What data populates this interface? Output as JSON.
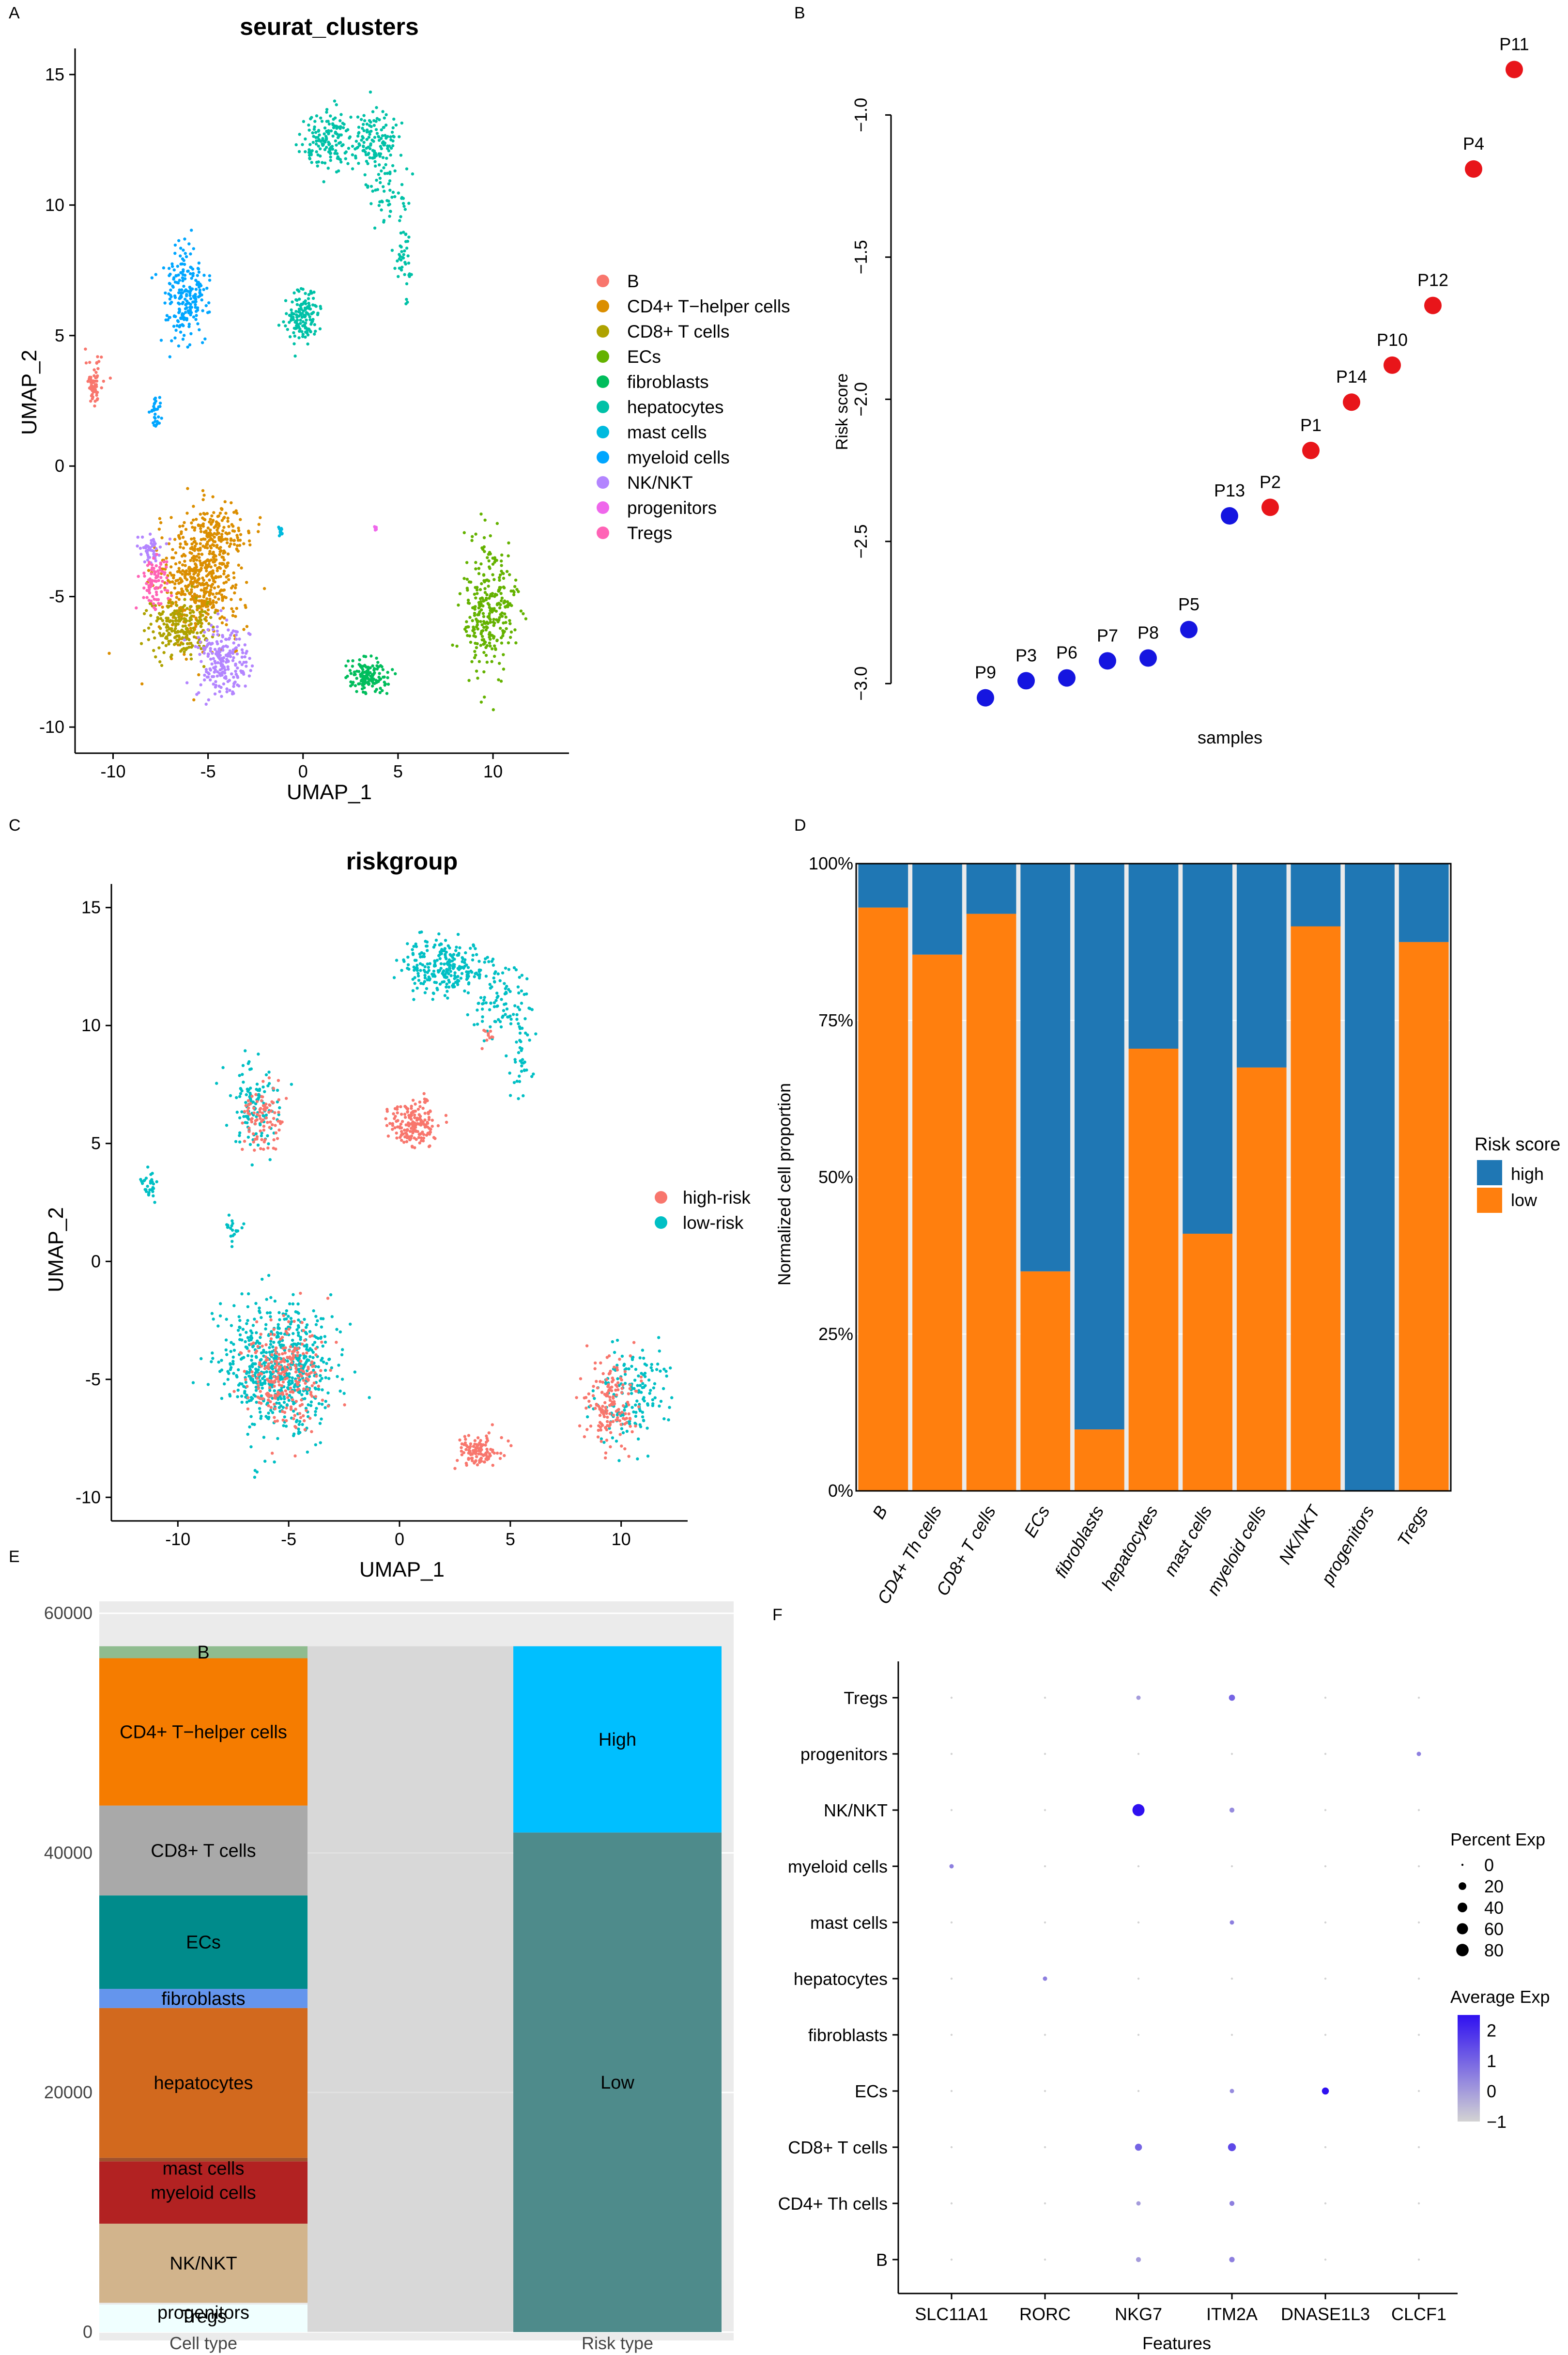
{
  "panel_labels": [
    "A",
    "B",
    "C",
    "D",
    "E",
    "F"
  ],
  "colors": {
    "clusters": {
      "B": "#F8766D",
      "CD4+ T-helper cells": "#DB8E00",
      "CD8+ T cells": "#AEA200",
      "ECs": "#64B200",
      "fibroblasts": "#00BD5C",
      "hepatocytes": "#00C1A7",
      "mast cells": "#00BADE",
      "myeloid cells": "#00A6FF",
      "NK/NKT": "#B385FF",
      "progenitors": "#EF67EB",
      "Tregs": "#FF63B6"
    },
    "high_risk": "#F8766D",
    "low_risk": "#00BFC4",
    "risk_high_point": "#E8151A",
    "risk_low_point": "#1515E0",
    "bar_high": "#1F77B4",
    "bar_low": "#FF7F0E",
    "alluvial_high": "#00BFFF",
    "alluvial_low": "#4E8B8B",
    "dot_low": "#D3D3D3",
    "dot_high": "#2F10F0"
  },
  "chart_data": [
    {
      "panel": "A",
      "type": "scatter",
      "title": "seurat_clusters",
      "xlabel": "UMAP_1",
      "ylabel": "UMAP_2",
      "xlim": [
        -12,
        14
      ],
      "ylim": [
        -11,
        16
      ],
      "xticks": [
        -10,
        -5,
        0,
        5,
        10
      ],
      "yticks": [
        -10,
        -5,
        0,
        5,
        10,
        15
      ],
      "legend": [
        "B",
        "CD4+ T−helper cells",
        "CD8+ T cells",
        "ECs",
        "fibroblasts",
        "hepatocytes",
        "mast cells",
        "myeloid cells",
        "NK/NKT",
        "progenitors",
        "Tregs"
      ],
      "clusters": [
        {
          "name": "B",
          "blobs": [
            [
              -11,
              3.2,
              0.4,
              0.8,
              60
            ]
          ]
        },
        {
          "name": "CD4+ T-helper cells",
          "blobs": [
            [
              -5.5,
              -4.5,
              2.0,
              2.0,
              500
            ],
            [
              -4.5,
              -2.5,
              1.5,
              1.0,
              150
            ]
          ]
        },
        {
          "name": "CD8+ T cells",
          "blobs": [
            [
              -6.5,
              -6.2,
              1.5,
              1.0,
              220
            ]
          ]
        },
        {
          "name": "ECs",
          "blobs": [
            [
              9.8,
              -5.5,
              1.2,
              2.2,
              300
            ]
          ]
        },
        {
          "name": "fibroblasts",
          "blobs": [
            [
              3.4,
              -8.0,
              1.0,
              0.6,
              130
            ]
          ]
        },
        {
          "name": "hepatocytes",
          "blobs": [
            [
              0,
              5.7,
              0.9,
              0.9,
              140
            ],
            [
              1.5,
              12.5,
              1.4,
              1.0,
              160
            ],
            [
              3.8,
              12.5,
              1.0,
              1.0,
              120
            ],
            [
              4.5,
              10.5,
              1.0,
              1.2,
              60
            ],
            [
              5.3,
              8.0,
              0.4,
              1.5,
              40
            ]
          ]
        },
        {
          "name": "mast cells",
          "blobs": [
            [
              -1.2,
              -2.5,
              0.1,
              0.15,
              15
            ]
          ]
        },
        {
          "name": "myeloid cells",
          "blobs": [
            [
              -6.2,
              6.5,
              1.0,
              1.6,
              220
            ],
            [
              -7.8,
              2.1,
              0.3,
              0.6,
              30
            ]
          ]
        },
        {
          "name": "NK/NKT",
          "blobs": [
            [
              -4.3,
              -7.5,
              1.2,
              1.3,
              220
            ],
            [
              -8.0,
              -3.2,
              0.6,
              0.6,
              50
            ]
          ]
        },
        {
          "name": "progenitors",
          "blobs": [
            [
              3.8,
              -2.4,
              0.08,
              0.12,
              6
            ]
          ]
        },
        {
          "name": "Tregs",
          "blobs": [
            [
              -7.8,
              -4.5,
              0.6,
              0.9,
              90
            ]
          ]
        }
      ]
    },
    {
      "panel": "B",
      "type": "scatter",
      "xlabel": "samples",
      "ylabel": "Risk score",
      "ylim": [
        -3.1,
        -0.8
      ],
      "yticks": [
        -3.0,
        -2.5,
        -2.0,
        -1.5,
        -1.0
      ],
      "points": [
        {
          "label": "P9",
          "value": -3.05,
          "group": "low"
        },
        {
          "label": "P3",
          "value": -2.99,
          "group": "low"
        },
        {
          "label": "P6",
          "value": -2.98,
          "group": "low"
        },
        {
          "label": "P7",
          "value": -2.92,
          "group": "low"
        },
        {
          "label": "P8",
          "value": -2.91,
          "group": "low"
        },
        {
          "label": "P5",
          "value": -2.81,
          "group": "low"
        },
        {
          "label": "P13",
          "value": -2.41,
          "group": "low"
        },
        {
          "label": "P2",
          "value": -2.38,
          "group": "high"
        },
        {
          "label": "P1",
          "value": -2.18,
          "group": "high"
        },
        {
          "label": "P14",
          "value": -2.01,
          "group": "high"
        },
        {
          "label": "P10",
          "value": -1.88,
          "group": "high"
        },
        {
          "label": "P12",
          "value": -1.67,
          "group": "high"
        },
        {
          "label": "P4",
          "value": -1.19,
          "group": "high"
        },
        {
          "label": "P11",
          "value": -0.84,
          "group": "high"
        }
      ]
    },
    {
      "panel": "C",
      "type": "scatter",
      "title": "riskgroup",
      "xlabel": "UMAP_1",
      "ylabel": "UMAP_2",
      "xlim": [
        -13,
        13
      ],
      "ylim": [
        -11,
        16
      ],
      "xticks": [
        -10,
        -5,
        0,
        5,
        10
      ],
      "yticks": [
        -10,
        -5,
        0,
        5,
        10,
        15
      ],
      "legend": [
        "high-risk",
        "low-risk"
      ],
      "groups": [
        {
          "name": "low-risk",
          "blobs": [
            [
              -5.5,
              -4.5,
              2.2,
              2.4,
              650
            ],
            [
              2.0,
              12.5,
              1.8,
              1.1,
              250
            ],
            [
              4.5,
              11,
              1.2,
              1.2,
              90
            ],
            [
              10.5,
              -5.5,
              1.5,
              2.0,
              160
            ],
            [
              -6.5,
              6.5,
              1.0,
              1.6,
              120
            ],
            [
              -11.3,
              3.2,
              0.4,
              0.6,
              30
            ],
            [
              5.5,
              8.5,
              0.5,
              1.5,
              40
            ],
            [
              -7.5,
              1.5,
              0.3,
              0.5,
              20
            ]
          ]
        },
        {
          "name": "high-risk",
          "blobs": [
            [
              -5.2,
              -4.8,
              1.6,
              2.0,
              260
            ],
            [
              0.7,
              5.8,
              1.0,
              0.9,
              180
            ],
            [
              -6.2,
              6.0,
              0.8,
              1.3,
              90
            ],
            [
              9.5,
              -6.0,
              1.0,
              1.6,
              160
            ],
            [
              3.6,
              -8.0,
              0.9,
              0.6,
              110
            ],
            [
              4.0,
              9.5,
              0.3,
              0.4,
              10
            ]
          ]
        }
      ]
    },
    {
      "panel": "D",
      "type": "bar",
      "stacked": true,
      "ylabel": "Normalized cell proportion",
      "yticks": [
        "0%",
        "25%",
        "50%",
        "75%",
        "100%"
      ],
      "legend_title": "Risk score",
      "legend": [
        "high",
        "low"
      ],
      "categories": [
        "B",
        "CD4+ Th cells",
        "CD8+ T cells",
        "ECs",
        "fibroblasts",
        "hepatocytes",
        "mast cells",
        "myeloid cells",
        "NK/NKT",
        "progenitors",
        "Tregs"
      ],
      "series": [
        {
          "name": "low",
          "values": [
            0.93,
            0.855,
            0.92,
            0.35,
            0.098,
            0.705,
            0.41,
            0.675,
            0.9,
            0.0,
            0.875
          ]
        },
        {
          "name": "high",
          "values": [
            0.07,
            0.145,
            0.08,
            0.65,
            0.902,
            0.295,
            0.59,
            0.325,
            0.1,
            1.0,
            0.125
          ]
        }
      ]
    },
    {
      "panel": "E",
      "type": "bar",
      "stacked": true,
      "subtype": "alluvial",
      "xcategories": [
        "Cell type",
        "Risk type"
      ],
      "yticks": [
        0,
        20000,
        40000,
        60000
      ],
      "ylim": [
        -700,
        61000
      ],
      "celltypes": [
        {
          "name": "Tregs",
          "value": 2300,
          "color": "#F0FFFF"
        },
        {
          "name": "progenitors",
          "value": 150,
          "color": "#E8E8E8"
        },
        {
          "name": "NK/NKT",
          "value": 6600,
          "color": "#D2B48C"
        },
        {
          "name": "myeloid cells",
          "value": 5200,
          "color": "#B22222"
        },
        {
          "name": "mast cells",
          "value": 300,
          "color": "#A0522D"
        },
        {
          "name": "hepatocytes",
          "value": 12500,
          "color": "#D2691E"
        },
        {
          "name": "fibroblasts",
          "value": 1600,
          "color": "#6495ED"
        },
        {
          "name": "ECs",
          "value": 7800,
          "color": "#008B8B"
        },
        {
          "name": "CD8+ T cells",
          "value": 7500,
          "color": "#A9A9A9"
        },
        {
          "name": "CD4+ T−helper cells",
          "value": 12300,
          "color": "#F57C00"
        },
        {
          "name": "B",
          "value": 1000,
          "color": "#8FBC8F"
        }
      ],
      "risktypes": [
        {
          "name": "Low",
          "value": 41700,
          "color": "#4E8B8B"
        },
        {
          "name": "High",
          "value": 15550,
          "color": "#00BFFF"
        }
      ]
    },
    {
      "panel": "F",
      "type": "scatter",
      "subtype": "dotplot",
      "xlabel": "Features",
      "features": [
        "SLC11A1",
        "RORC",
        "NKG7",
        "ITM2A",
        "DNASE1L3",
        "CLCF1"
      ],
      "rows": [
        "B",
        "CD4+ Th cells",
        "CD8+ T cells",
        "ECs",
        "fibroblasts",
        "hepatocytes",
        "mast cells",
        "myeloid cells",
        "NK/NKT",
        "progenitors",
        "Tregs"
      ],
      "pct": [
        [
          0,
          0,
          2,
          3,
          0,
          0
        ],
        [
          0,
          0,
          1,
          2,
          0,
          0
        ],
        [
          0,
          0,
          8,
          12,
          0,
          0
        ],
        [
          0,
          0,
          0,
          1,
          8,
          0
        ],
        [
          0,
          0,
          0,
          0,
          0,
          0
        ],
        [
          0,
          1,
          0,
          0,
          0,
          0
        ],
        [
          0,
          0,
          0,
          1,
          0,
          0
        ],
        [
          1,
          0,
          0,
          0,
          0,
          0
        ],
        [
          0,
          0,
          40,
          2,
          0,
          0
        ],
        [
          0,
          0,
          0,
          0,
          0,
          1
        ],
        [
          0,
          0,
          1,
          5,
          0,
          0
        ]
      ],
      "avg": [
        [
          -1,
          -1,
          0,
          0.5,
          -1,
          -1
        ],
        [
          -1,
          -1,
          0,
          0.5,
          -1,
          -1
        ],
        [
          -1,
          -1,
          1.0,
          1.5,
          -1,
          -1
        ],
        [
          -1,
          -1,
          -1,
          0.3,
          2.5,
          -1
        ],
        [
          -1,
          -1,
          -1,
          -1,
          -1,
          -1
        ],
        [
          -1,
          0.5,
          -1,
          -1,
          -1,
          -1
        ],
        [
          -1,
          -1,
          -1,
          0.5,
          -1,
          -1
        ],
        [
          0.5,
          -1,
          -1,
          -1,
          -1,
          -1
        ],
        [
          -1,
          -1,
          2.5,
          0.3,
          -1,
          -1
        ],
        [
          -1,
          -1,
          -1,
          -1,
          -1,
          0.5
        ],
        [
          -1,
          -1,
          0,
          1.0,
          -1,
          -1
        ]
      ],
      "legend_percent_title": "Percent Exp",
      "legend_percent": [
        0,
        20,
        40,
        60,
        80
      ],
      "legend_avg_title": "Average Exp",
      "legend_avg_ticks": [
        2,
        1,
        0,
        -1
      ],
      "avg_range": [
        -1,
        2.5
      ]
    }
  ]
}
